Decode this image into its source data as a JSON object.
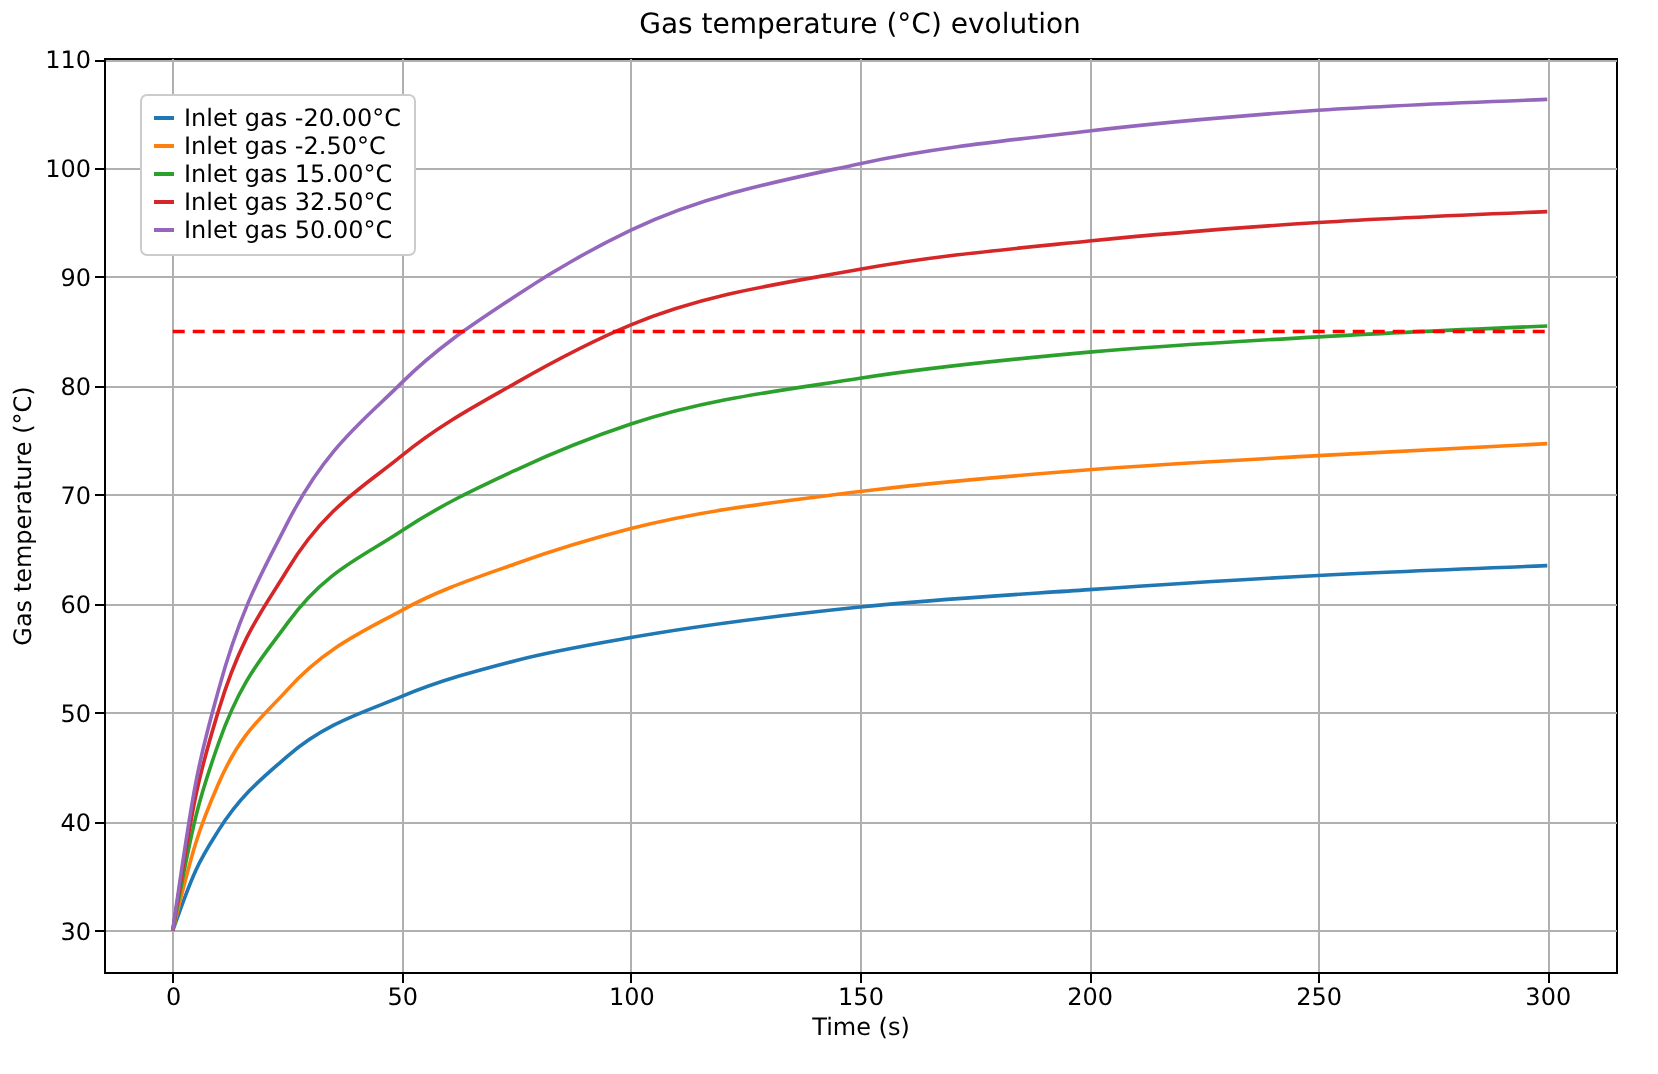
{
  "chart_data": {
    "type": "line",
    "title": "Gas temperature (°C) evolution",
    "xlabel": "Time (s)",
    "ylabel": "Gas temperature (°C)",
    "x": [
      0,
      5,
      10,
      25,
      50,
      75,
      100,
      150,
      200,
      250,
      300
    ],
    "series": [
      {
        "name": "Inlet gas -20.00°C",
        "color": "#1f77b4",
        "values": [
          30,
          35.5,
          39.2,
          46,
          51.5,
          54.8,
          56.9,
          59.7,
          61.3,
          62.6,
          63.5
        ]
      },
      {
        "name": "Inlet gas -2.50°C",
        "color": "#ff7f0e",
        "values": [
          30,
          38,
          43.5,
          52.1,
          59.4,
          63.7,
          66.9,
          70.3,
          72.3,
          73.6,
          74.7
        ]
      },
      {
        "name": "Inlet gas 15.00°C",
        "color": "#2ca02c",
        "values": [
          30,
          40.4,
          47.2,
          58.2,
          66.7,
          72.3,
          76.5,
          80.7,
          83.1,
          84.5,
          85.5
        ]
      },
      {
        "name": "Inlet gas 32.50°C",
        "color": "#d62728",
        "values": [
          30,
          42.3,
          50.2,
          63.1,
          73.6,
          80.3,
          85.6,
          90.7,
          93.3,
          95.0,
          96.0
        ]
      },
      {
        "name": "Inlet gas 50.00°C",
        "color": "#9467bd",
        "values": [
          30,
          43.5,
          52.1,
          67.4,
          80.3,
          88.3,
          94.3,
          100.4,
          103.4,
          105.3,
          106.3
        ]
      }
    ],
    "ref_lines": [
      {
        "axis": "y",
        "value": 85,
        "color": "#ff0000",
        "line_style": "dashed"
      }
    ],
    "xlim": [
      -15,
      315
    ],
    "xticks": [
      0,
      50,
      100,
      150,
      200,
      250,
      300
    ],
    "ylim": [
      26.2,
      110.1
    ],
    "yticks": [
      30,
      40,
      50,
      60,
      70,
      80,
      90,
      100,
      110
    ],
    "grid": true,
    "legend": "top left",
    "marker": "none",
    "line_style": "solid"
  }
}
